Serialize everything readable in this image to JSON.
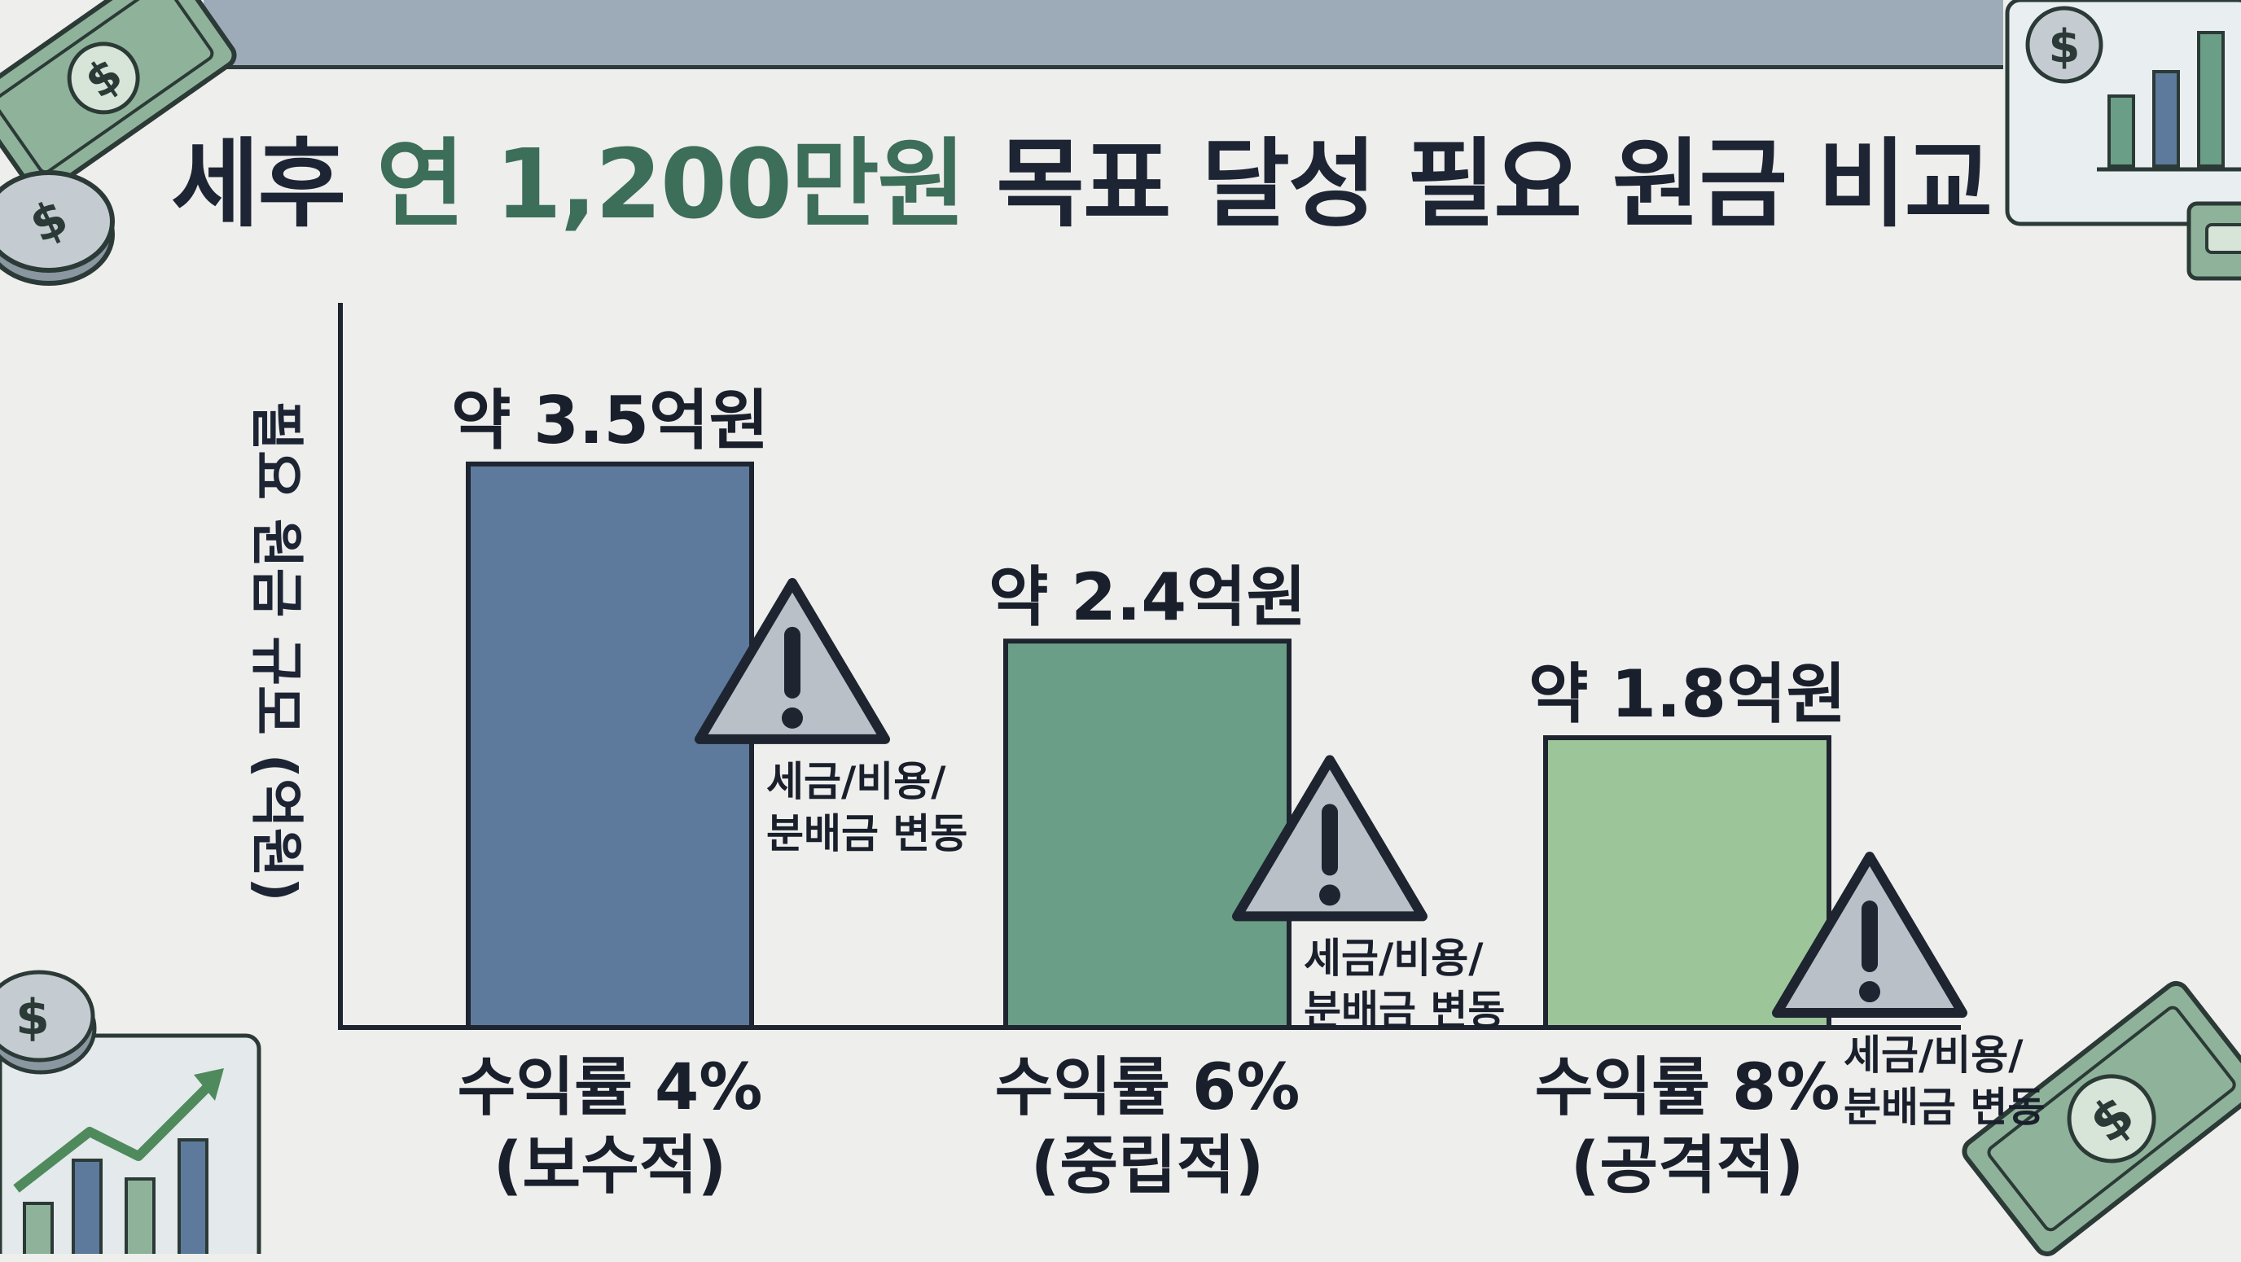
{
  "title": {
    "before": "세후 ",
    "accent": "연 1,200만원",
    "after": " 목표 달성 필요 원금 비교"
  },
  "chart_data": {
    "type": "bar",
    "title": "세후 연 1,200만원 목표 달성 필요 원금 비교",
    "ylabel": "필요 원금 규모 (억원)",
    "xlabel": "",
    "ylim": [
      0,
      4.5
    ],
    "grid": false,
    "categories": [
      [
        "수익률 4%",
        "(보수적)"
      ],
      [
        "수익률 6%",
        "(중립적)"
      ],
      [
        "수익률 8%",
        "(공격적)"
      ]
    ],
    "values": [
      3.5,
      2.4,
      1.8
    ],
    "value_labels": [
      "약 3.5억원",
      "약 2.4억원",
      "약 1.8억원"
    ],
    "annotations": [
      [
        "세금/비용/",
        "분배금 변동"
      ],
      [
        "세금/비용/",
        "분배금 변동"
      ],
      [
        "세금/비용/",
        "분배금 변동"
      ]
    ],
    "bar_colors": [
      "#5d7a9c",
      "#6a9e86",
      "#9dc59a"
    ],
    "annotation_icon": "warning-triangle-icon"
  },
  "colors": {
    "background": "#eeeeec",
    "title_accent": "#3c6e5a",
    "axis": "#1e2430",
    "money": "#6b9a7c"
  }
}
